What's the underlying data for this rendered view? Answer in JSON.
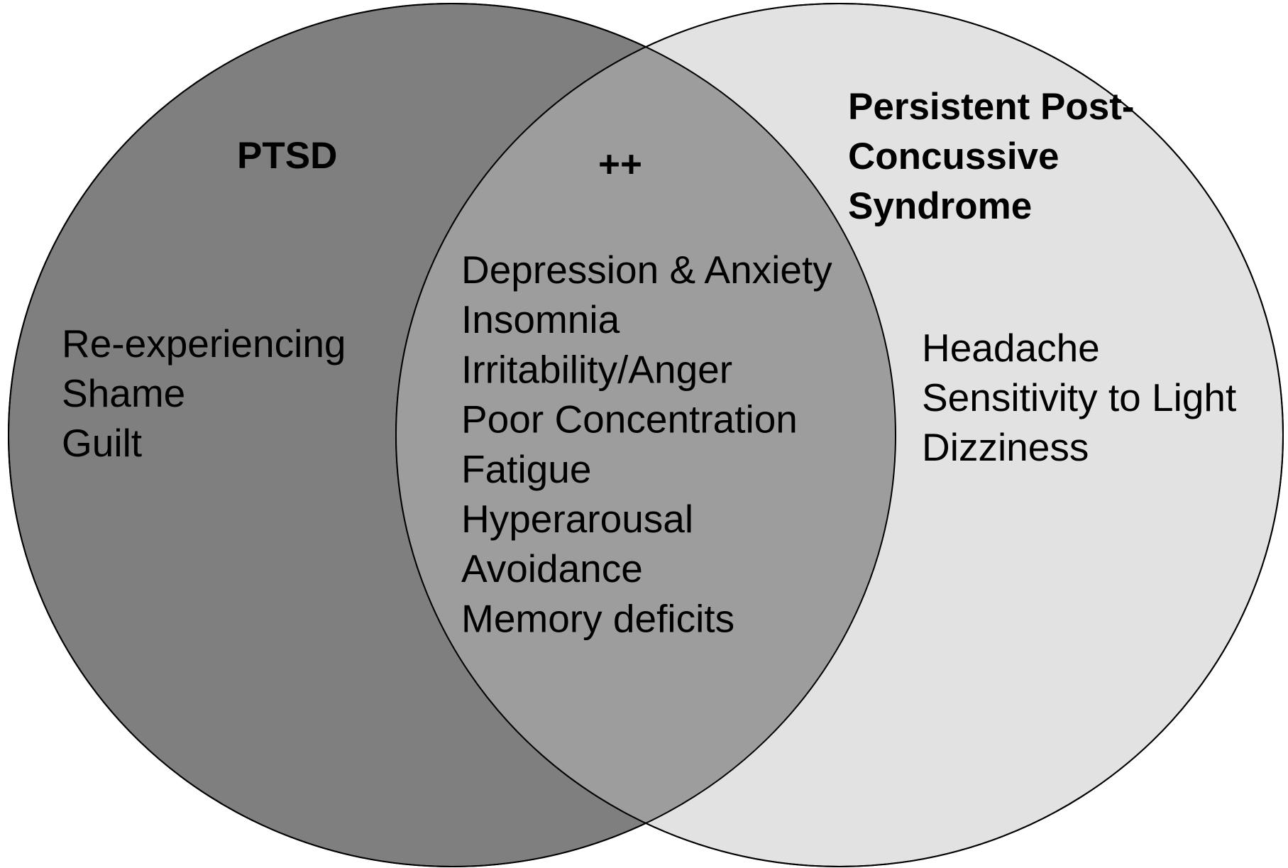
{
  "sets": [
    {
      "label_lines": [
        "PTSD"
      ],
      "items": [
        "Re-experiencing",
        "Shame",
        "Guilt"
      ]
    },
    {
      "label_lines": [
        "Persistent Post-",
        "Concussive",
        "Syndrome"
      ],
      "items": [
        "Headache",
        "Sensitivity to Light",
        "Dizziness"
      ]
    }
  ],
  "intersection": {
    "label": "++",
    "items": [
      "Depression & Anxiety",
      "Insomnia",
      "Irritability/Anger",
      "Poor Concentration",
      "Fatigue",
      "Hyperarousal",
      "Avoidance",
      "Memory deficits"
    ]
  }
}
